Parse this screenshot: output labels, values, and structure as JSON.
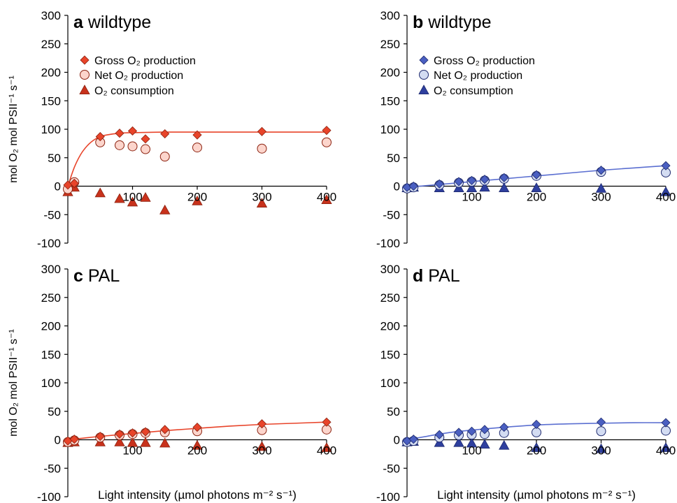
{
  "figure": {
    "x_axis_label": "Light intensity (µmol photons m⁻² s⁻¹)",
    "y_axis_label": "mol O₂ mol PSII⁻¹ s⁻¹",
    "legend": {
      "gross": "Gross O₂ production",
      "net": "Net O₂ production",
      "consumption": "O₂ consumption"
    }
  },
  "chart_data": [
    {
      "type": "scatter",
      "panel": "a",
      "title": "wildtype",
      "has_legend": true,
      "colors": {
        "gross": "#e8442a",
        "net": "#fcd5cc",
        "consumption": "#c8321c",
        "fit": "#e8442a",
        "outline": "#8b2210"
      },
      "xlim": [
        0,
        400
      ],
      "ylim": [
        -100,
        300
      ],
      "x_ticks": [
        100,
        200,
        300,
        400
      ],
      "y_ticks": [
        -100,
        -50,
        0,
        50,
        100,
        150,
        200,
        250,
        300
      ],
      "grid": false,
      "series": [
        {
          "name": "Gross O₂ production",
          "marker": "diamond",
          "x": [
            0,
            10,
            50,
            80,
            100,
            120,
            150,
            200,
            300,
            400
          ],
          "y": [
            2,
            5,
            87,
            93,
            97,
            83,
            92,
            90,
            96,
            98
          ]
        },
        {
          "name": "Net O₂ production",
          "marker": "circle",
          "x": [
            0,
            10,
            50,
            80,
            100,
            120,
            150,
            200,
            300,
            400
          ],
          "y": [
            -5,
            7,
            77,
            72,
            70,
            65,
            52,
            68,
            66,
            77
          ]
        },
        {
          "name": "O₂ consumption",
          "marker": "triangle",
          "x": [
            0,
            10,
            50,
            80,
            100,
            120,
            150,
            200,
            300,
            400
          ],
          "y": [
            -10,
            -2,
            -12,
            -22,
            -28,
            -20,
            -42,
            -26,
            -30,
            -24
          ]
        }
      ],
      "fit": {
        "x": [
          0,
          10,
          20,
          30,
          40,
          50,
          60,
          80,
          100,
          150,
          200,
          300,
          400
        ],
        "y": [
          0,
          33,
          56,
          71,
          81,
          87,
          90,
          93,
          94,
          95,
          95,
          95,
          95
        ]
      }
    },
    {
      "type": "scatter",
      "panel": "b",
      "title": "wildtype",
      "has_legend": true,
      "colors": {
        "gross": "#4a5fc1",
        "net": "#d3dcf2",
        "consumption": "#2e3f9e",
        "fit": "#5b6fd1",
        "outline": "#1e2a6e"
      },
      "xlim": [
        0,
        400
      ],
      "ylim": [
        -100,
        300
      ],
      "x_ticks": [
        100,
        200,
        300,
        400
      ],
      "y_ticks": [
        -100,
        -50,
        0,
        50,
        100,
        150,
        200,
        250,
        300
      ],
      "grid": false,
      "series": [
        {
          "name": "Gross O₂ production",
          "marker": "diamond",
          "x": [
            0,
            10,
            50,
            80,
            100,
            120,
            150,
            200,
            300,
            400
          ],
          "y": [
            -2,
            0,
            4,
            8,
            10,
            12,
            15,
            20,
            28,
            36
          ]
        },
        {
          "name": "Net O₂ production",
          "marker": "circle",
          "x": [
            0,
            10,
            50,
            80,
            100,
            120,
            150,
            200,
            300,
            400
          ],
          "y": [
            -4,
            -2,
            2,
            6,
            8,
            10,
            13,
            18,
            25,
            24
          ]
        },
        {
          "name": "O₂ consumption",
          "marker": "triangle",
          "x": [
            0,
            10,
            50,
            80,
            100,
            120,
            150,
            200,
            300,
            400
          ],
          "y": [
            -3,
            -2,
            -3,
            -3,
            -3,
            -2,
            -3,
            -3,
            -4,
            -10
          ]
        }
      ],
      "fit": {
        "x": [
          0,
          50,
          100,
          150,
          200,
          250,
          300,
          350,
          400
        ],
        "y": [
          -2,
          3,
          8,
          13,
          18,
          23,
          28,
          32,
          36
        ]
      }
    },
    {
      "type": "scatter",
      "panel": "c",
      "title": "PAL",
      "has_legend": false,
      "colors": {
        "gross": "#e8442a",
        "net": "#fcd5cc",
        "consumption": "#c8321c",
        "fit": "#e8442a",
        "outline": "#8b2210"
      },
      "xlim": [
        0,
        400
      ],
      "ylim": [
        -100,
        300
      ],
      "x_ticks": [
        100,
        200,
        300,
        400
      ],
      "y_ticks": [
        -100,
        -50,
        0,
        50,
        100,
        150,
        200,
        250,
        300
      ],
      "grid": false,
      "series": [
        {
          "name": "Gross O₂ production",
          "marker": "diamond",
          "x": [
            0,
            10,
            50,
            80,
            100,
            120,
            150,
            200,
            300,
            400
          ],
          "y": [
            -2,
            1,
            6,
            10,
            12,
            14,
            18,
            22,
            28,
            31
          ]
        },
        {
          "name": "Net O₂ production",
          "marker": "circle",
          "x": [
            0,
            10,
            50,
            80,
            100,
            120,
            150,
            200,
            300,
            400
          ],
          "y": [
            -4,
            -1,
            4,
            8,
            10,
            12,
            13,
            15,
            17,
            18
          ]
        },
        {
          "name": "O₂ consumption",
          "marker": "triangle",
          "x": [
            0,
            10,
            50,
            80,
            100,
            120,
            150,
            200,
            300,
            400
          ],
          "y": [
            -5,
            -4,
            -4,
            -4,
            -5,
            -5,
            -6,
            -10,
            -12,
            -14
          ]
        }
      ],
      "fit": {
        "x": [
          0,
          25,
          50,
          100,
          150,
          200,
          250,
          300,
          350,
          400
        ],
        "y": [
          0,
          3,
          6,
          11,
          16,
          20,
          24,
          27,
          29,
          31
        ]
      }
    },
    {
      "type": "scatter",
      "panel": "d",
      "title": "PAL",
      "has_legend": false,
      "colors": {
        "gross": "#4a5fc1",
        "net": "#d3dcf2",
        "consumption": "#2e3f9e",
        "fit": "#5b6fd1",
        "outline": "#1e2a6e"
      },
      "xlim": [
        0,
        400
      ],
      "ylim": [
        -100,
        300
      ],
      "x_ticks": [
        100,
        200,
        300,
        400
      ],
      "y_ticks": [
        -100,
        -50,
        0,
        50,
        100,
        150,
        200,
        250,
        300
      ],
      "grid": false,
      "series": [
        {
          "name": "Gross O₂ production",
          "marker": "diamond",
          "x": [
            0,
            10,
            50,
            80,
            100,
            120,
            150,
            200,
            300,
            400
          ],
          "y": [
            -2,
            1,
            9,
            13,
            15,
            18,
            22,
            27,
            31,
            30
          ]
        },
        {
          "name": "Net O₂ production",
          "marker": "circle",
          "x": [
            0,
            10,
            50,
            80,
            100,
            120,
            150,
            200,
            300,
            400
          ],
          "y": [
            -4,
            -2,
            4,
            8,
            9,
            10,
            12,
            13,
            15,
            16
          ]
        },
        {
          "name": "O₂ consumption",
          "marker": "triangle",
          "x": [
            0,
            10,
            50,
            80,
            100,
            120,
            150,
            200,
            300,
            400
          ],
          "y": [
            -4,
            -3,
            -5,
            -5,
            -6,
            -8,
            -10,
            -14,
            -16,
            -14
          ]
        }
      ],
      "fit": {
        "x": [
          0,
          25,
          50,
          75,
          100,
          150,
          200,
          250,
          300,
          350,
          400
        ],
        "y": [
          0,
          5,
          10,
          14,
          17,
          22,
          26,
          28,
          29,
          30,
          30
        ]
      }
    }
  ]
}
